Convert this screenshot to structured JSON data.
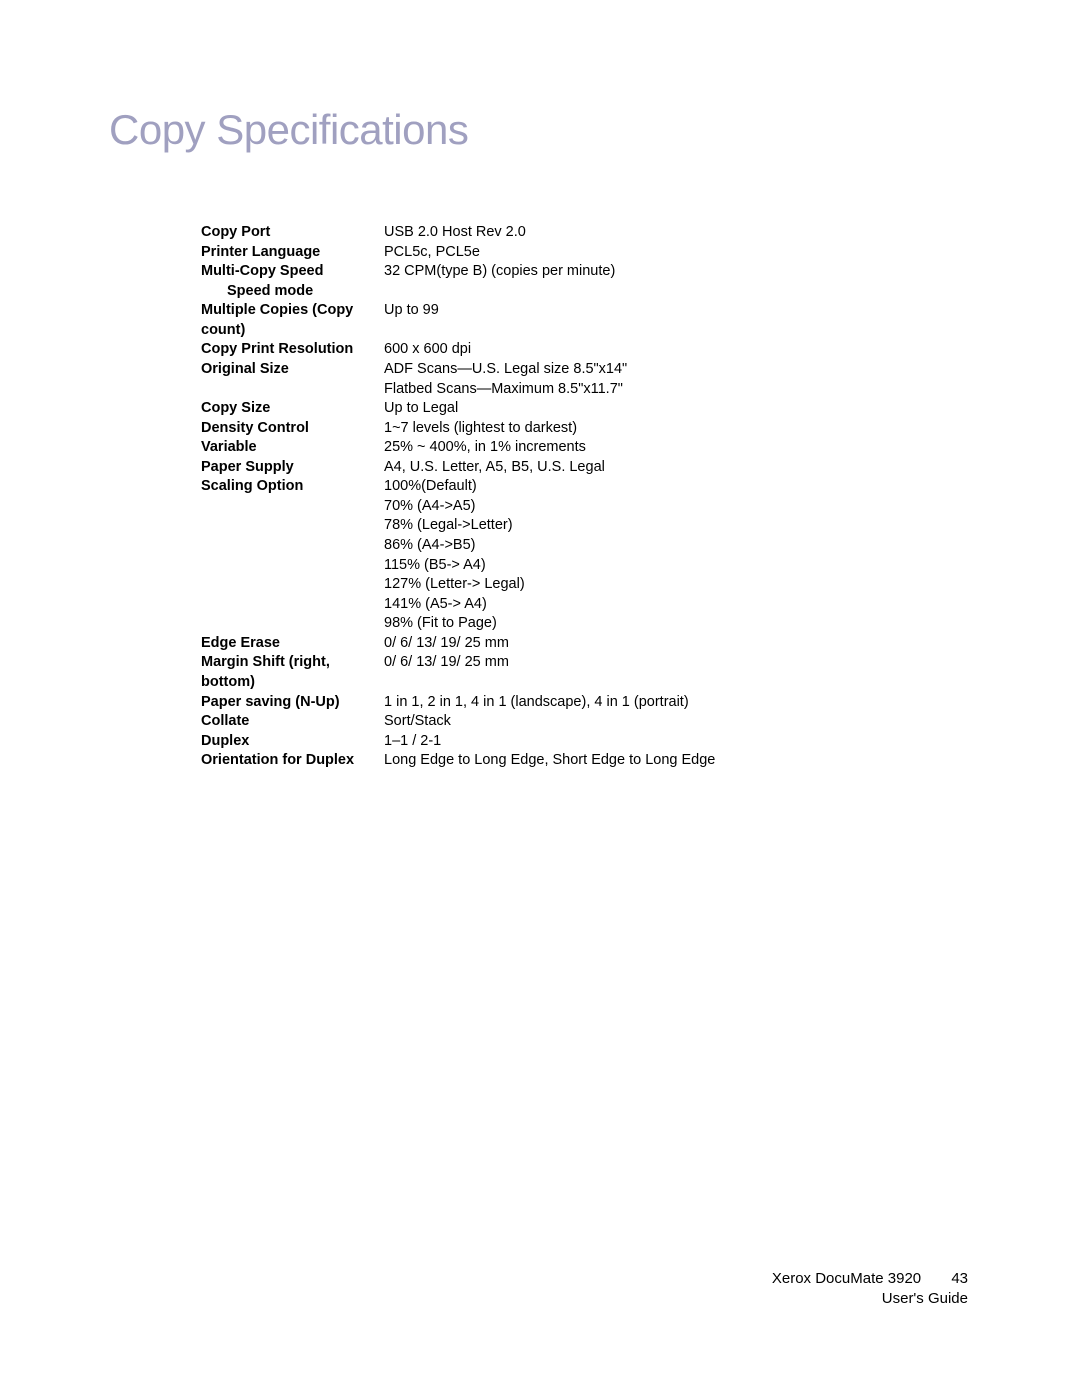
{
  "title": "Copy Specifications",
  "specs": [
    {
      "label": "Copy Port",
      "value": [
        "USB 2.0 Host Rev 2.0"
      ]
    },
    {
      "label": "Printer Language",
      "value": [
        "PCL5c, PCL5e"
      ]
    },
    {
      "label": "Multi-Copy Speed",
      "sublabel": "Speed mode",
      "value": [
        "32 CPM(type B) (copies per minute)"
      ]
    },
    {
      "label": "Multiple Copies (Copy count)",
      "value": [
        "Up to 99"
      ]
    },
    {
      "label": "Copy Print Resolution",
      "value": [
        "600 x 600 dpi"
      ]
    },
    {
      "label": "Original Size",
      "value": [
        "ADF Scans—U.S. Legal size 8.5\"x14\"",
        "Flatbed Scans—Maximum 8.5\"x11.7\""
      ]
    },
    {
      "label": "Copy Size",
      "value": [
        "Up to Legal"
      ]
    },
    {
      "label": "Density Control",
      "value": [
        "1~7 levels (lightest to darkest)"
      ]
    },
    {
      "label": "Variable",
      "value": [
        "25% ~ 400%, in 1% increments"
      ]
    },
    {
      "label": "Paper Supply",
      "value": [
        "A4, U.S. Letter, A5, B5, U.S. Legal"
      ]
    },
    {
      "label": "Scaling Option",
      "value": [
        "100%(Default)",
        "70% (A4->A5)",
        "78% (Legal->Letter)",
        "86% (A4->B5)",
        "115% (B5-> A4)",
        "127% (Letter-> Legal)",
        "141% (A5-> A4)",
        "98% (Fit to Page)"
      ]
    },
    {
      "label": "Edge Erase",
      "value": [
        "0/ 6/ 13/ 19/ 25 mm"
      ]
    },
    {
      "label": "Margin Shift (right, bottom)",
      "value": [
        "0/ 6/ 13/ 19/ 25 mm"
      ]
    },
    {
      "label": "Paper saving (N-Up)",
      "value": [
        "1 in 1, 2 in 1, 4 in 1 (landscape), 4 in 1 (portrait)"
      ]
    },
    {
      "label": "Collate",
      "value": [
        "Sort/Stack"
      ]
    },
    {
      "label": "Duplex",
      "value": [
        "1–1 / 2-1"
      ]
    },
    {
      "label": "Orientation for Duplex",
      "value": [
        "Long Edge to Long Edge, Short Edge to Long Edge"
      ]
    }
  ],
  "footer": {
    "product": "Xerox DocuMate 3920",
    "pagenum": "43",
    "doctype": "User's Guide"
  }
}
